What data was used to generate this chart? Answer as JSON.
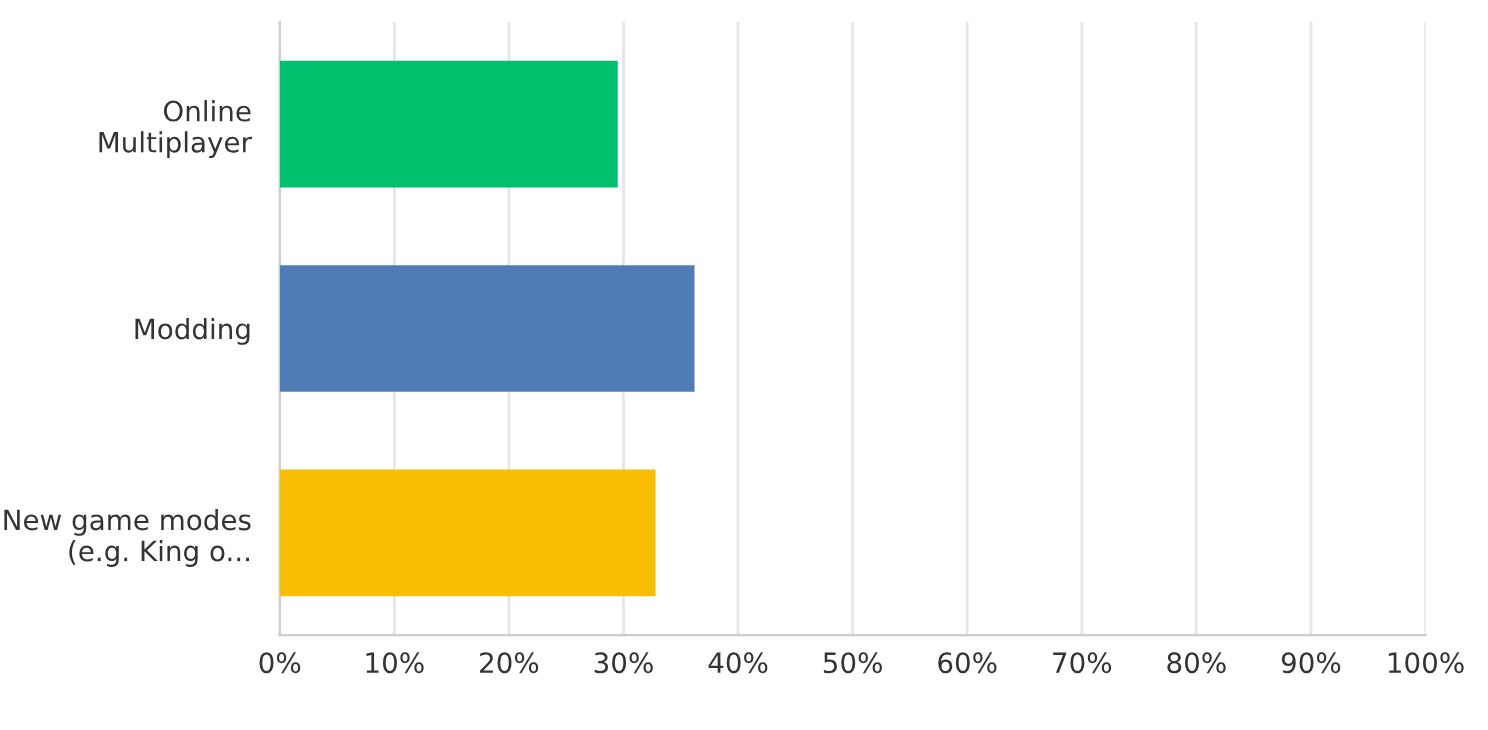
{
  "chart_data": {
    "type": "bar",
    "orientation": "horizontal",
    "categories": [
      "Online\nMultiplayer",
      "Modding",
      "New game modes\n(e.g. King o..."
    ],
    "values": [
      29.5,
      36.2,
      32.8
    ],
    "colors": [
      "#00bf6f",
      "#507cb6",
      "#f9be00"
    ],
    "xlim": [
      0,
      100
    ],
    "xticks": [
      {
        "value": 0,
        "label": "0%"
      },
      {
        "value": 10,
        "label": "10%"
      },
      {
        "value": 20,
        "label": "20%"
      },
      {
        "value": 30,
        "label": "30%"
      },
      {
        "value": 40,
        "label": "40%"
      },
      {
        "value": 50,
        "label": "50%"
      },
      {
        "value": 60,
        "label": "60%"
      },
      {
        "value": 70,
        "label": "70%"
      },
      {
        "value": 80,
        "label": "80%"
      },
      {
        "value": 90,
        "label": "90%"
      },
      {
        "value": 100,
        "label": "100%"
      }
    ],
    "grid": "x",
    "legend": false
  }
}
